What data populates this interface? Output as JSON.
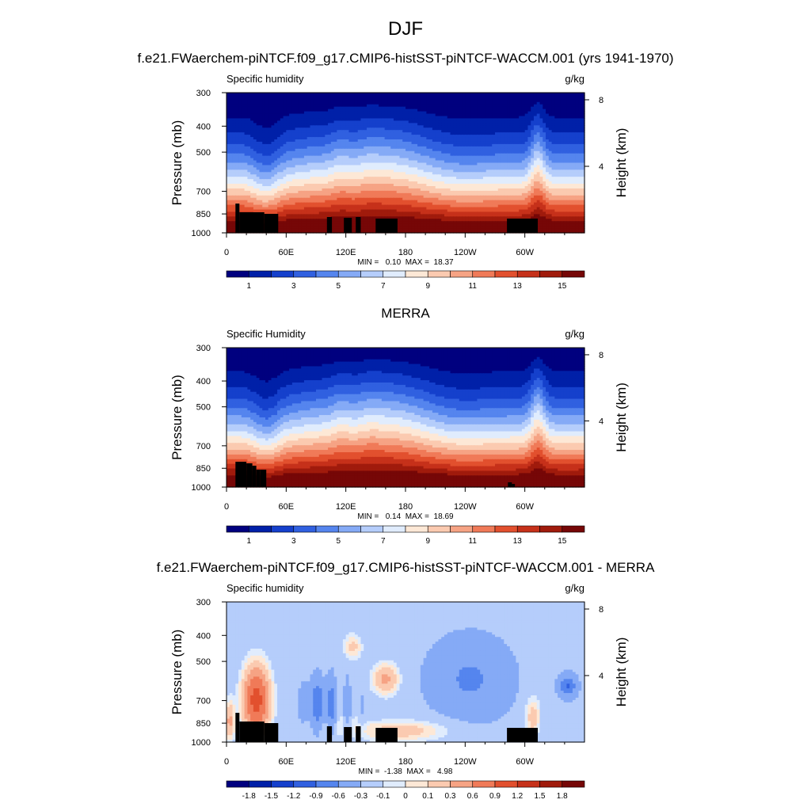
{
  "page_title": "DJF",
  "panels": [
    {
      "heading": "f.e21.FWaerchem-piNTCF.f09_g17.CMIP6-histSST-piNTCF-WACCM.001 (yrs 1941-1970)",
      "left_label": "Specific humidity",
      "right_label": "g/kg",
      "stats": "MIN =   0.10  MAX =  18.37"
    },
    {
      "heading": "MERRA",
      "left_label": "Specific Humidity",
      "right_label": "g/kg",
      "stats": "MIN =   0.14  MAX =  18.69"
    },
    {
      "heading": "f.e21.FWaerchem-piNTCF.f09_g17.CMIP6-histSST-piNTCF-WACCM.001 - MERRA",
      "left_label": "Specific humidity",
      "right_label": "g/kg",
      "stats": "MIN =  -1.38  MAX =   4.98"
    }
  ],
  "colors": {
    "abs_scale": [
      "#00007f",
      "#0020a8",
      "#1540cc",
      "#3060e0",
      "#5585ee",
      "#85aaf6",
      "#b5cdfb",
      "#e0ecfd",
      "#fde8d6",
      "#fbcab0",
      "#f6a384",
      "#f07a58",
      "#e2502e",
      "#c6311a",
      "#a01b0c",
      "#760707"
    ],
    "diff_scale": [
      "#00007f",
      "#0020a8",
      "#1540cc",
      "#3060e0",
      "#5585ee",
      "#85aaf6",
      "#b5cdfb",
      "#e0ecfd",
      "#fde8d6",
      "#fbcab0",
      "#f6a384",
      "#f07a58",
      "#e2502e",
      "#c6311a",
      "#a01b0c",
      "#760707"
    ],
    "topography": "#000000"
  },
  "chart_data": [
    {
      "type": "heatmap",
      "title": "Specific humidity",
      "units": "g/kg",
      "ylabel": "Pressure (mb)",
      "y2label": "Height (km)",
      "x_ticks": [
        "0",
        "60E",
        "120E",
        "180",
        "120W",
        "60W"
      ],
      "x_tick_values": [
        0,
        60,
        120,
        180,
        240,
        300
      ],
      "x_range": [
        0,
        360
      ],
      "y_ticks": [
        300,
        400,
        500,
        700,
        850,
        1000
      ],
      "y_range": [
        300,
        1000
      ],
      "y_scale": "log",
      "y2_ticks": [
        8,
        4
      ],
      "colorbar_labels": [
        "1",
        "3",
        "5",
        "7",
        "9",
        "11",
        "13",
        "15"
      ],
      "min": 0.1,
      "max": 18.37
    },
    {
      "type": "heatmap",
      "title": "Specific Humidity",
      "units": "g/kg",
      "ylabel": "Pressure (mb)",
      "y2label": "Height (km)",
      "x_ticks": [
        "0",
        "60E",
        "120E",
        "180",
        "120W",
        "60W"
      ],
      "x_tick_values": [
        0,
        60,
        120,
        180,
        240,
        300
      ],
      "x_range": [
        0,
        360
      ],
      "y_ticks": [
        300,
        400,
        500,
        700,
        850,
        1000
      ],
      "y_range": [
        300,
        1000
      ],
      "y_scale": "log",
      "y2_ticks": [
        8,
        4
      ],
      "colorbar_labels": [
        "1",
        "3",
        "5",
        "7",
        "9",
        "11",
        "13",
        "15"
      ],
      "min": 0.14,
      "max": 18.69
    },
    {
      "type": "heatmap",
      "title": "Specific humidity",
      "units": "g/kg",
      "ylabel": "Pressure (mb)",
      "y2label": "Height (km)",
      "x_ticks": [
        "0",
        "60E",
        "120E",
        "180",
        "120W",
        "60W"
      ],
      "x_tick_values": [
        0,
        60,
        120,
        180,
        240,
        300
      ],
      "x_range": [
        0,
        360
      ],
      "y_ticks": [
        300,
        400,
        500,
        700,
        850,
        1000
      ],
      "y_range": [
        300,
        1000
      ],
      "y_scale": "log",
      "y2_ticks": [
        8,
        4
      ],
      "colorbar_labels": [
        "-1.8",
        "-1.5",
        "-1.2",
        "-0.9",
        "-0.6",
        "-0.3",
        "-0.1",
        "0",
        "0.1",
        "0.3",
        "0.6",
        "0.9",
        "1.2",
        "1.5",
        "1.8"
      ],
      "min": -1.38,
      "max": 4.98
    }
  ]
}
